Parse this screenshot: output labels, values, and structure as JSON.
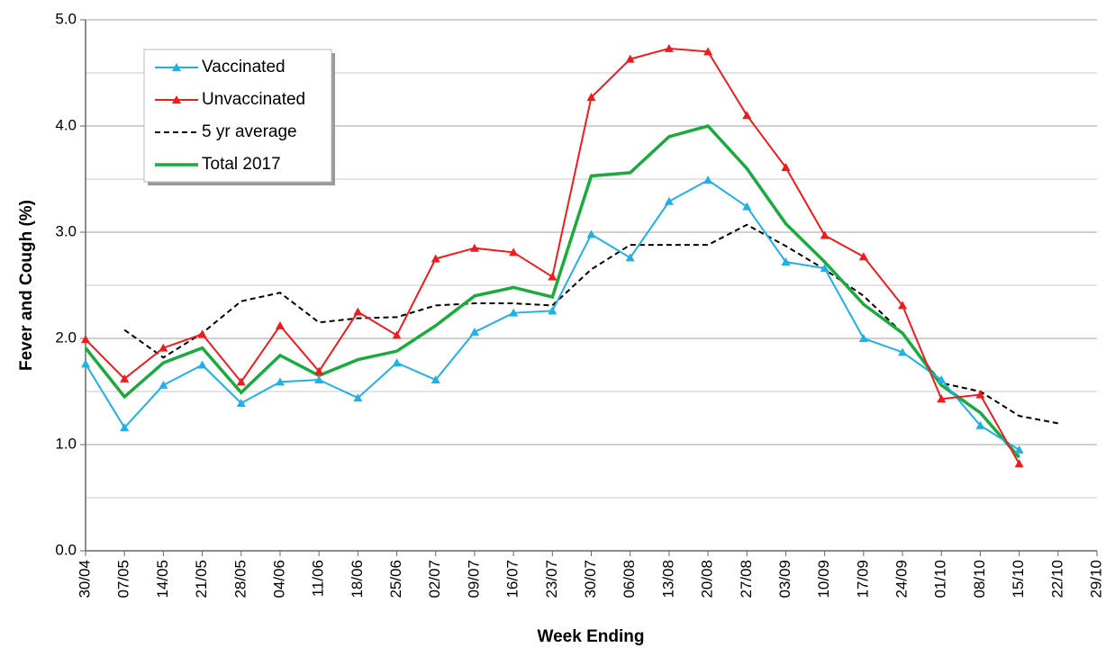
{
  "chart_data": {
    "type": "line",
    "x_label": "Week Ending",
    "y_label": "Fever and Cough (%)",
    "categories": [
      "30/04",
      "07/05",
      "14/05",
      "21/05",
      "28/05",
      "04/06",
      "11/06",
      "18/06",
      "25/06",
      "02/07",
      "09/07",
      "16/07",
      "23/07",
      "30/07",
      "06/08",
      "13/08",
      "20/08",
      "27/08",
      "03/09",
      "10/09",
      "17/09",
      "24/09",
      "01/10",
      "08/10",
      "15/10",
      "22/10",
      "29/10"
    ],
    "series": [
      {
        "name": "Vaccinated",
        "color": "#1fb0e8",
        "marker": "triangle",
        "dash": false,
        "values": [
          1.76,
          1.16,
          1.56,
          1.75,
          1.39,
          1.59,
          1.61,
          1.44,
          1.77,
          1.61,
          2.06,
          2.24,
          2.26,
          2.98,
          2.76,
          3.29,
          3.49,
          3.24,
          2.72,
          2.66,
          2.0,
          1.87,
          1.61,
          1.18,
          0.95,
          null,
          null
        ]
      },
      {
        "name": "Unvaccinated",
        "color": "#ee1c1c",
        "marker": "triangle",
        "dash": false,
        "values": [
          1.99,
          1.62,
          1.91,
          2.04,
          1.59,
          2.12,
          1.69,
          2.25,
          2.03,
          2.75,
          2.85,
          2.81,
          2.58,
          4.27,
          4.63,
          4.73,
          4.7,
          4.1,
          3.61,
          2.97,
          2.77,
          2.31,
          1.43,
          1.47,
          0.82,
          null,
          null
        ]
      },
      {
        "name": "5 yr average",
        "color": "#000000",
        "marker": "none",
        "dash": true,
        "values": [
          null,
          2.08,
          1.82,
          2.05,
          2.35,
          2.43,
          2.15,
          2.19,
          2.2,
          2.31,
          2.33,
          2.33,
          2.31,
          2.65,
          2.88,
          2.88,
          2.88,
          3.07,
          2.87,
          2.65,
          2.4,
          2.05,
          1.58,
          1.5,
          1.27,
          1.2,
          null
        ]
      },
      {
        "name": "Total 2017",
        "color": "#1aaa3e",
        "marker": "none",
        "dash": false,
        "values": [
          1.91,
          1.45,
          1.77,
          1.91,
          1.49,
          1.84,
          1.65,
          1.8,
          1.88,
          2.12,
          2.4,
          2.48,
          2.39,
          3.53,
          3.56,
          3.9,
          4.0,
          3.6,
          3.08,
          2.72,
          2.32,
          2.05,
          1.56,
          1.3,
          0.88,
          null,
          null
        ]
      }
    ],
    "ylim": [
      0,
      5
    ],
    "yticks": [
      {
        "value": 0,
        "label": "0.0"
      },
      {
        "value": 1,
        "label": "1.0"
      },
      {
        "value": 2,
        "label": "2.0"
      },
      {
        "value": 3,
        "label": "3.0"
      },
      {
        "value": 4,
        "label": "4.0"
      },
      {
        "value": 5,
        "label": "5.0"
      }
    ],
    "y_minor_grid": [
      0.5,
      1.5,
      2.5,
      3.5,
      4.5
    ],
    "grid": true,
    "legend": "top-left"
  }
}
